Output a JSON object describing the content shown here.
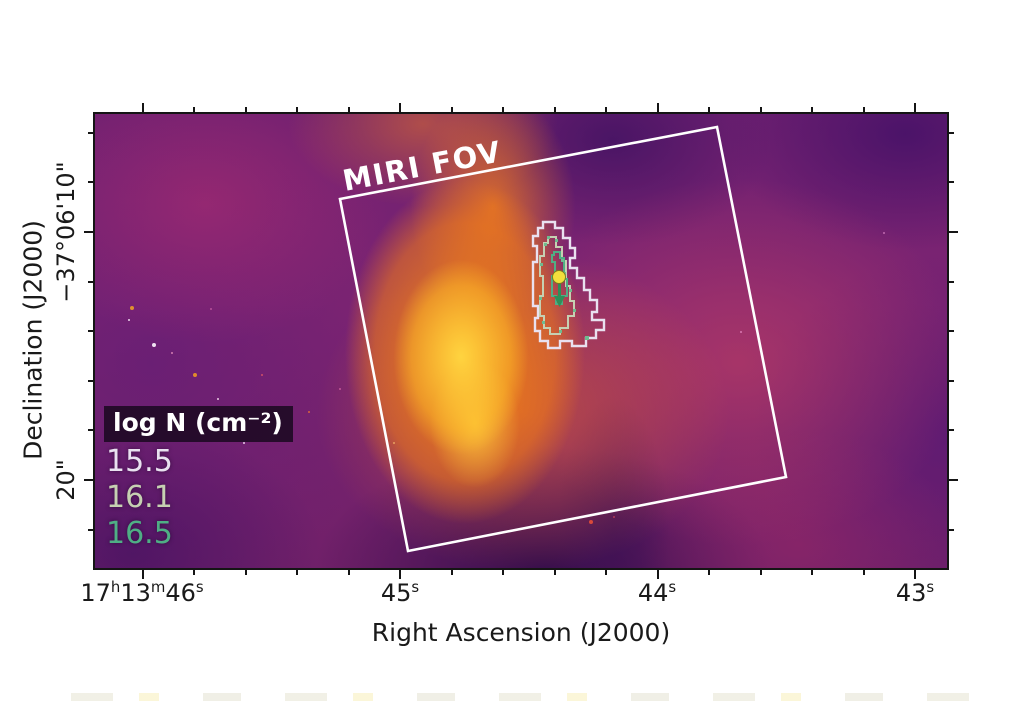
{
  "x_axis": {
    "label": "Right Ascension (J2000)",
    "first_tick": {
      "hours": "17",
      "h_sup": "h",
      "minutes": "13",
      "m_sup": "m",
      "seconds": "46",
      "s_sup": "s"
    },
    "tick2": {
      "value": "45",
      "sup": "s"
    },
    "tick3": {
      "value": "44",
      "sup": "s"
    },
    "tick4": {
      "value": "43",
      "sup": "s"
    }
  },
  "y_axis": {
    "label": "Declination (J2000)",
    "tick1": "−37°06'10\"",
    "tick2": "20\""
  },
  "overlay": {
    "fov_label": "MIRI FOV",
    "fov_color": "#ffffff",
    "marker_color": "#f2de3c",
    "marker_edge_color": "#7a7a1e",
    "arrow_color": "#2f8f58",
    "contour_dot_color": "#6fbb8f"
  },
  "legend": {
    "title": "log N (cm⁻²)",
    "items": [
      {
        "value": "15.5",
        "color": "#e9e1f0"
      },
      {
        "value": "16.1",
        "color": "#c6d0b2"
      },
      {
        "value": "16.5",
        "color": "#4fae85"
      }
    ]
  },
  "chart_data": {
    "type": "heatmap",
    "title": "",
    "xlabel": "Right Ascension (J2000)",
    "ylabel": "Declination (J2000)",
    "x_tick_labels": [
      "17h13m46s",
      "45s",
      "44s",
      "43s"
    ],
    "x_minor_tick_interval_s": 0.2,
    "x_axis_direction": "RA decreases to the right",
    "x_range_estimate": [
      "17h13m46.2s",
      "17h13m42.9s"
    ],
    "y_tick_labels": [
      "−37°06'10\"",
      "20\""
    ],
    "y_minor_tick_interval_arcsec": 2,
    "y_range_estimate": [
      "−37°06'05\"",
      "−37°06'24\""
    ],
    "colormap": "inferno-like (dark purple to orange-yellow)",
    "image_content": "bright orange-yellow nebular hourglass slightly left of center on purple-magenta background with faint point sources",
    "fov_box": {
      "label": "MIRI FOV",
      "rotation_deg": -10.8,
      "color": "#ffffff"
    },
    "contour_levels": [
      {
        "log_N_cm2": 15.5,
        "color": "#e9e1f0"
      },
      {
        "log_N_cm2": 16.1,
        "color": "#c6d0b2"
      },
      {
        "log_N_cm2": 16.5,
        "color": "#4fae85"
      }
    ],
    "markers": [
      {
        "type": "filled-circle",
        "color": "#f2de3c",
        "location": "center of contoured core"
      },
      {
        "type": "down-arrow",
        "color": "#2f8f58",
        "location": "just below circle marker"
      }
    ],
    "legend_title": "log N (cm⁻²)",
    "legend_position": "lower left"
  }
}
